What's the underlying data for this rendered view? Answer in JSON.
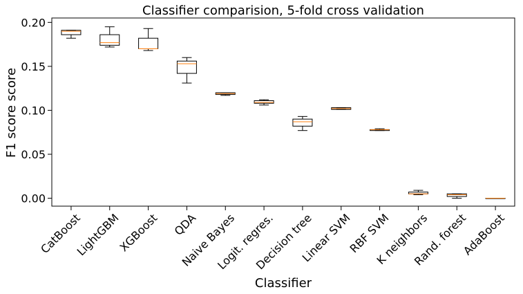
{
  "chart_data": {
    "type": "box",
    "title": "Classifier comparision, 5-fold cross validation",
    "xlabel": "Classifier",
    "ylabel": "F1 score score",
    "ylim": [
      -0.009,
      0.205
    ],
    "yticks": [
      0.0,
      0.05,
      0.1,
      0.15,
      0.2
    ],
    "ytick_labels": [
      "0.00",
      "0.05",
      "0.10",
      "0.15",
      "0.20"
    ],
    "grid": false,
    "colors": {
      "box": "#000000",
      "median": "#ff7f0e",
      "background": "#ffffff"
    },
    "categories": [
      "CatBoost",
      "LightGBM",
      "XGBoost",
      "QDA",
      "Naive Bayes",
      "Logit. regres.",
      "Decision tree",
      "Linear SVM",
      "RBF SVM",
      "K neighbors",
      "Rand. forest",
      "AdaBoost"
    ],
    "boxes": [
      {
        "whisker_low": 0.182,
        "q1": 0.186,
        "median": 0.19,
        "q3": 0.191,
        "whisker_high": 0.191
      },
      {
        "whisker_low": 0.172,
        "q1": 0.174,
        "median": 0.177,
        "q3": 0.186,
        "whisker_high": 0.195
      },
      {
        "whisker_low": 0.168,
        "q1": 0.17,
        "median": 0.17,
        "q3": 0.182,
        "whisker_high": 0.193
      },
      {
        "whisker_low": 0.131,
        "q1": 0.142,
        "median": 0.153,
        "q3": 0.156,
        "whisker_high": 0.16
      },
      {
        "whisker_low": 0.117,
        "q1": 0.118,
        "median": 0.119,
        "q3": 0.12,
        "whisker_high": 0.12
      },
      {
        "whisker_low": 0.106,
        "q1": 0.108,
        "median": 0.109,
        "q3": 0.111,
        "whisker_high": 0.112
      },
      {
        "whisker_low": 0.077,
        "q1": 0.082,
        "median": 0.087,
        "q3": 0.09,
        "whisker_high": 0.093
      },
      {
        "whisker_low": 0.101,
        "q1": 0.101,
        "median": 0.102,
        "q3": 0.103,
        "whisker_high": 0.103
      },
      {
        "whisker_low": 0.077,
        "q1": 0.077,
        "median": 0.078,
        "q3": 0.078,
        "whisker_high": 0.079
      },
      {
        "whisker_low": 0.004,
        "q1": 0.005,
        "median": 0.005,
        "q3": 0.007,
        "whisker_high": 0.009
      },
      {
        "whisker_low": 0.0,
        "q1": 0.002,
        "median": 0.004,
        "q3": 0.005,
        "whisker_high": 0.005
      },
      {
        "whisker_low": 0.0,
        "q1": 0.0,
        "median": 0.0,
        "q3": 0.0,
        "whisker_high": 0.0
      }
    ]
  }
}
